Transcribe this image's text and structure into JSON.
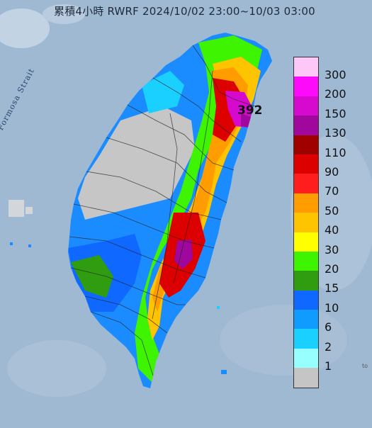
{
  "title": "累積4小時 RWRF 2024/10/02 23:00~10/03 03:00",
  "map_labels": {
    "strait": "Formosa Strait",
    "peak_value": "392",
    "corner_text": "to"
  },
  "legend": {
    "labels": [
      "300",
      "200",
      "150",
      "130",
      "110",
      "90",
      "70",
      "50",
      "40",
      "30",
      "20",
      "15",
      "10",
      "6",
      "2",
      "1"
    ],
    "colors": [
      "#fdc8f8",
      "#fd0afa",
      "#d609cf",
      "#a0079c",
      "#a00000",
      "#dd0000",
      "#ff1d1d",
      "#ff9c00",
      "#ffc400",
      "#ffff00",
      "#3ff400",
      "#2f9d0f",
      "#0f68ff",
      "#0f9bff",
      "#1ad0ff",
      "#98ffff",
      "#c5c5c5"
    ]
  },
  "colors": {
    "sea": "#9fb9d3",
    "land_grey": "#c6c6c6"
  }
}
